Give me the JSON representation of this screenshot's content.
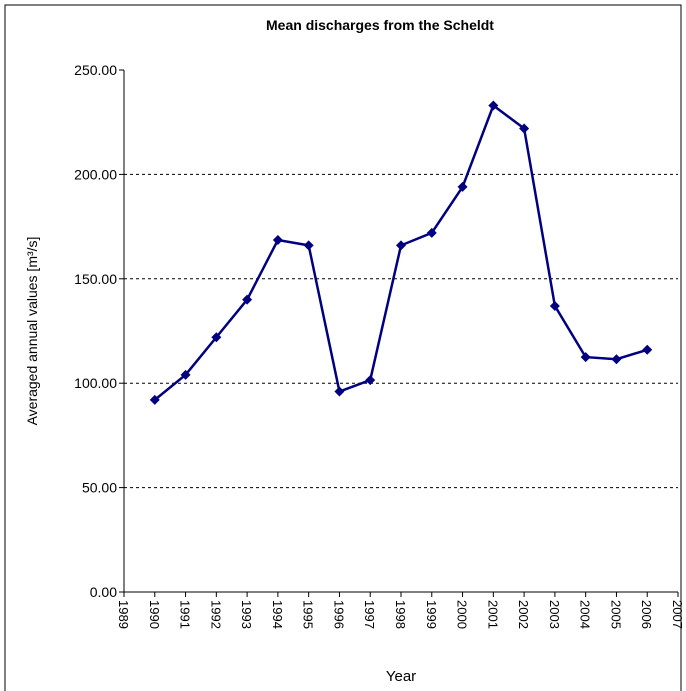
{
  "chart_data": {
    "type": "line",
    "title": "Mean discharges from the Scheldt",
    "xlabel": "Year",
    "ylabel": "Averaged annual values [m³/s]",
    "x": [
      1990,
      1991,
      1992,
      1993,
      1994,
      1995,
      1996,
      1997,
      1998,
      1999,
      2000,
      2001,
      2002,
      2003,
      2004,
      2005,
      2006
    ],
    "series": [
      {
        "name": "Mean discharge",
        "color": "#000080",
        "values": [
          92,
          104,
          122,
          140,
          168.6,
          166,
          96,
          101.5,
          166,
          172,
          194,
          233,
          222,
          137,
          112.5,
          111.5,
          116
        ]
      }
    ],
    "xlim": [
      1989,
      2007
    ],
    "xticks": [
      1989,
      1990,
      1991,
      1992,
      1993,
      1994,
      1995,
      1996,
      1997,
      1998,
      1999,
      2000,
      2001,
      2002,
      2003,
      2004,
      2005,
      2006,
      2007
    ],
    "ylim": [
      0,
      250
    ],
    "yticks": [
      {
        "value": 0,
        "label": "0.00"
      },
      {
        "value": 50,
        "label": "50.00"
      },
      {
        "value": 100,
        "label": "100.00"
      },
      {
        "value": 150,
        "label": "150.00"
      },
      {
        "value": 200,
        "label": "200.00"
      },
      {
        "value": 250,
        "label": "250.00"
      }
    ],
    "grid": true
  }
}
